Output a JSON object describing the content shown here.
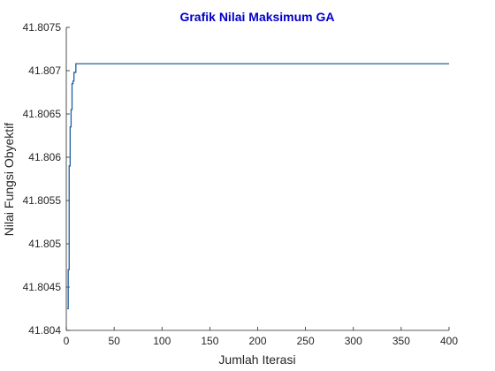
{
  "chart_data": {
    "type": "line",
    "title": "Grafik Nilai Maksimum GA",
    "xlabel": "Jumlah Iterasi",
    "ylabel": "Nilai Fungsi Obyektif",
    "xlim": [
      0,
      400
    ],
    "ylim": [
      41.804,
      41.8075
    ],
    "x_ticks": [
      "0",
      "50",
      "100",
      "150",
      "200",
      "250",
      "300",
      "350",
      "400"
    ],
    "y_ticks": [
      "41.804",
      "41.8045",
      "41.805",
      "41.8055",
      "41.806",
      "41.8065",
      "41.807",
      "41.8075"
    ],
    "grid": false,
    "title_color": "#0000cc",
    "series": [
      {
        "color": "#1f5fa0",
        "x": [
          1,
          2,
          3,
          4,
          5,
          6,
          7,
          8,
          9,
          10,
          11,
          400
        ],
        "y": [
          41.80425,
          41.8047,
          41.8059,
          41.80635,
          41.80655,
          41.80685,
          41.80688,
          41.80698,
          41.80698,
          41.80708,
          41.80708,
          41.80708
        ]
      }
    ]
  }
}
